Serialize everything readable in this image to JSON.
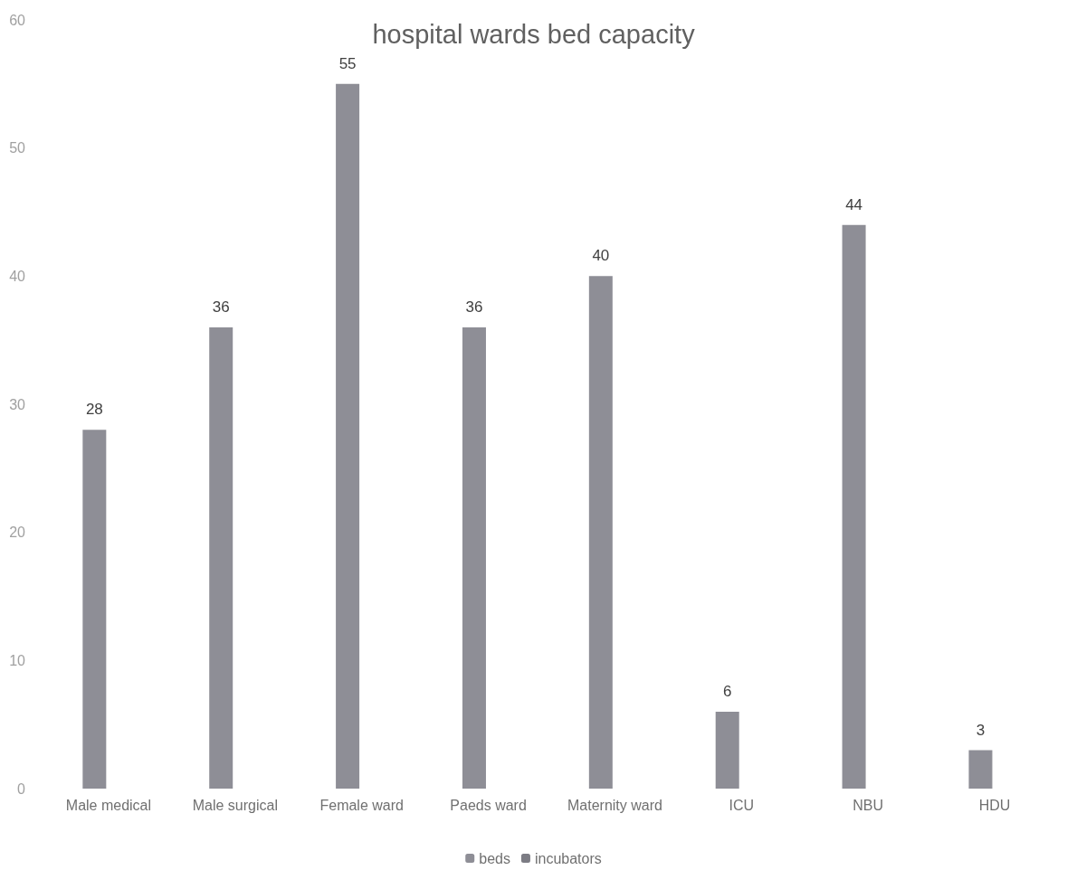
{
  "chart_data": {
    "type": "bar",
    "title": "hospital wards bed capacity",
    "categories": [
      "Male medical",
      "Male surgical",
      "Female ward",
      "Paeds ward",
      "Maternity ward",
      "ICU",
      "NBU",
      "HDU"
    ],
    "series": [
      {
        "name": "beds",
        "color": "#8e8e96",
        "values": [
          28,
          36,
          55,
          36,
          40,
          6,
          44,
          3
        ]
      },
      {
        "name": "incubators",
        "color": "#7c7c84",
        "values": [
          null,
          null,
          null,
          null,
          null,
          null,
          null,
          null
        ]
      }
    ],
    "ylim": [
      0,
      60
    ],
    "yticks": [
      0,
      10,
      20,
      30,
      40,
      50,
      60
    ],
    "grid": false,
    "legend": "bottom",
    "data_labels": true
  }
}
